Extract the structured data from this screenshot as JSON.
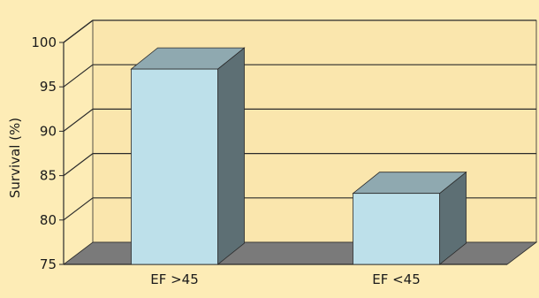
{
  "colors": {
    "background": "#fdecb6",
    "plot_wall": "#fae6ad",
    "gridline": "#2b2b2b",
    "floor": "#7a7a7a",
    "bar_front": "#bde0ea",
    "bar_top": "#8fa9b0",
    "bar_side": "#5d6f74",
    "axis": "#2b2b2b"
  },
  "chart_data": {
    "type": "bar",
    "style": "3d",
    "title": "",
    "xlabel": "",
    "ylabel": "Survival (%)",
    "categories": [
      "EF >45",
      "EF <45"
    ],
    "values": [
      97,
      83
    ],
    "ylim": [
      75,
      100
    ],
    "yticks": [
      75,
      80,
      85,
      90,
      95,
      100
    ],
    "grid": true,
    "legend": "none"
  }
}
